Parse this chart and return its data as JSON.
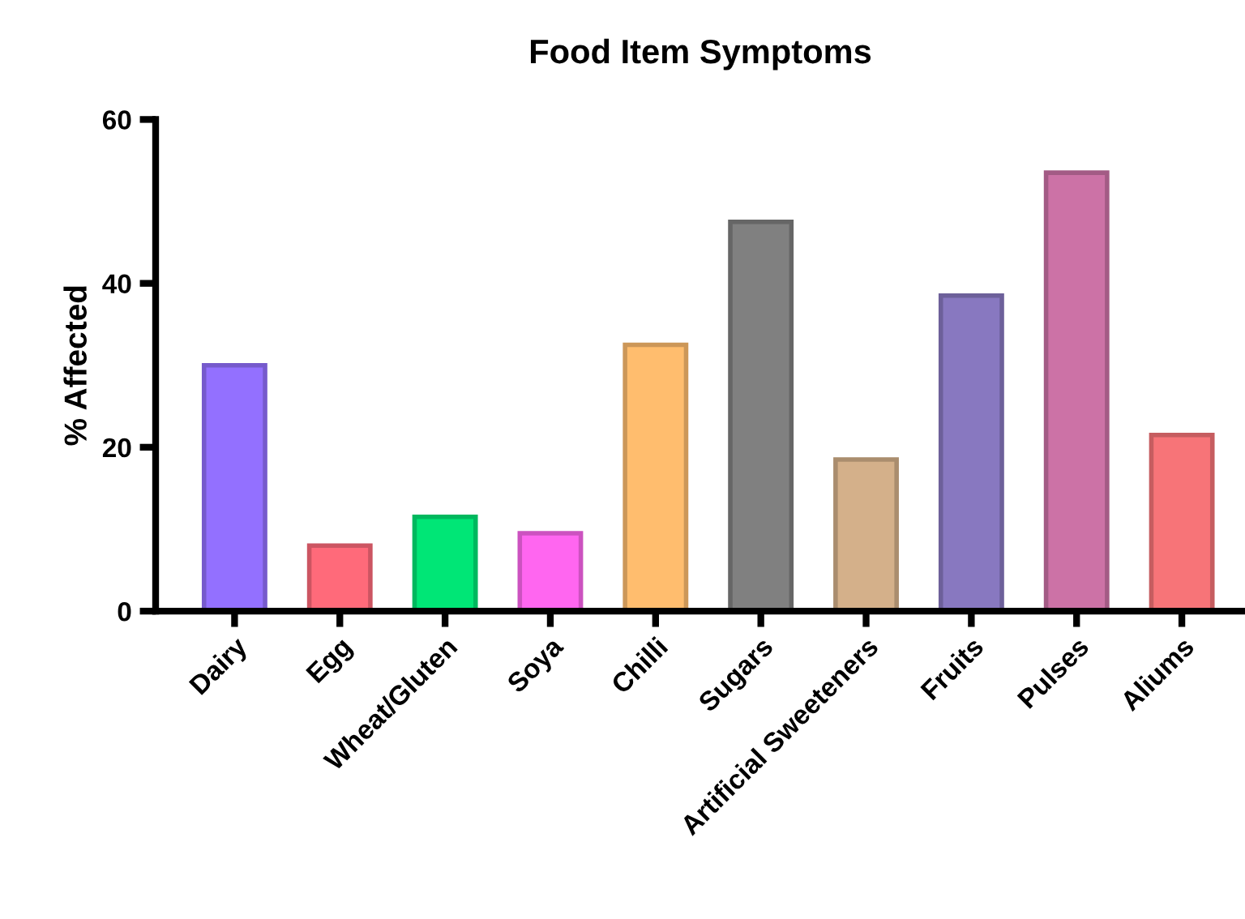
{
  "chart_data": {
    "type": "bar",
    "title": "Food Item Symptoms",
    "ylabel": "% Affected",
    "categories": [
      "Dairy",
      "Egg",
      "Wheat/Gluten",
      "Soya",
      "Chilli",
      "Sugars",
      "Artificial Sweeteners",
      "Fruits",
      "Pulses",
      "Aliums"
    ],
    "values": [
      30,
      8,
      11.5,
      9.5,
      32.5,
      47.5,
      18.5,
      38.5,
      53.5,
      21.5
    ],
    "colors": [
      "#9370ff",
      "#ff6a7a",
      "#00e676",
      "#ff66f0",
      "#ffbd6e",
      "#808080",
      "#d4b08a",
      "#8878c0",
      "#cc72a6",
      "#f77478"
    ],
    "ylim": [
      0,
      60
    ],
    "yticks": [
      0,
      20,
      40,
      60
    ],
    "grid": false
  }
}
